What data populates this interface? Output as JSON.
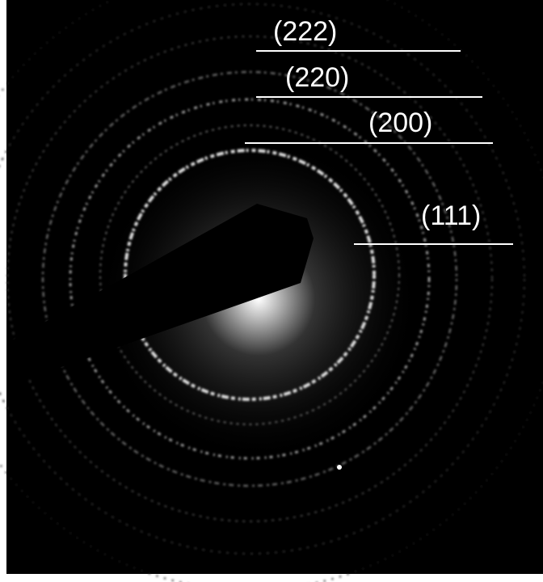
{
  "labels": [
    "(222)",
    "(220)",
    "(200)",
    "(111)"
  ]
}
